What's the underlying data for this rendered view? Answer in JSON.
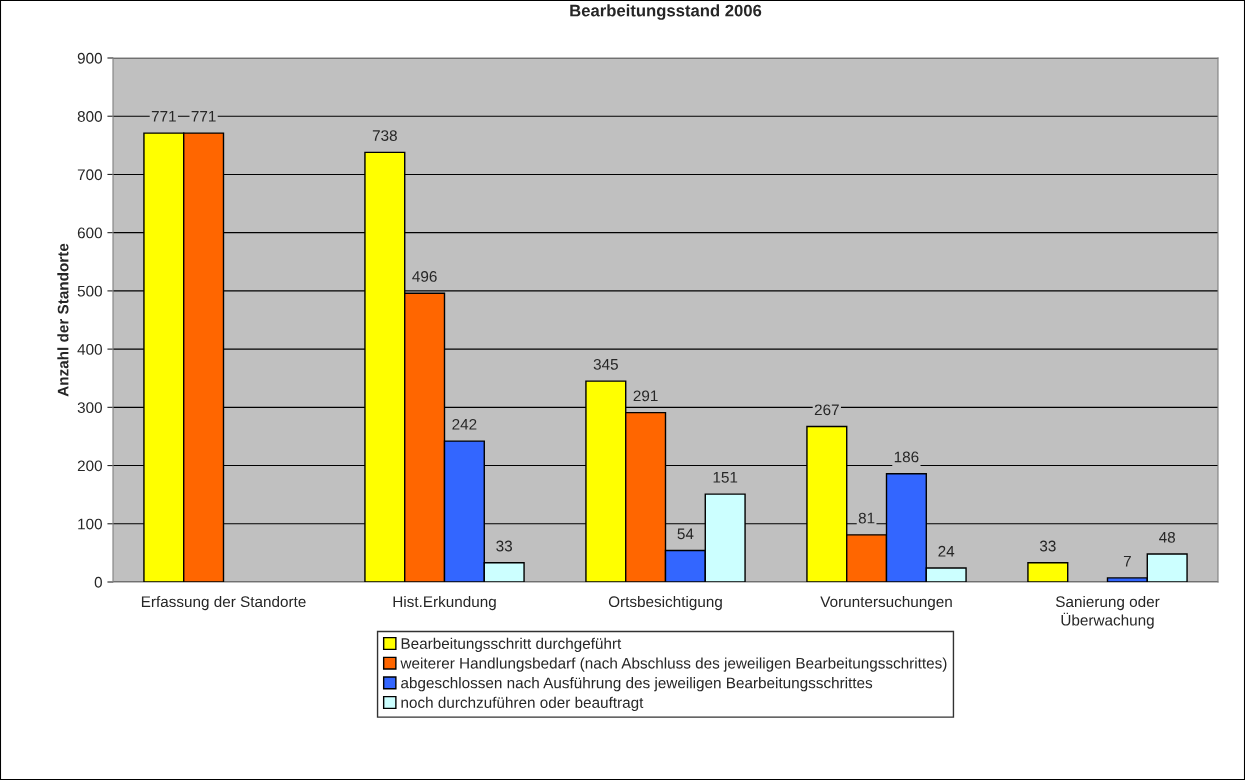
{
  "chart_data": {
    "type": "bar",
    "title": "Bearbeitungsstand 2006",
    "ylabel": "Anzahl der Standorte",
    "categories": [
      "Erfassung der Standorte",
      "Hist.Erkundung",
      "Ortsbesichtigung",
      "Voruntersuchungen",
      "Sanierung oder\nÜberwachung"
    ],
    "series": [
      {
        "name": "Bearbeitungsschritt durchgeführt",
        "color": "#ffff00",
        "values": [
          771,
          738,
          345,
          267,
          33
        ]
      },
      {
        "name": "weiterer Handlungsbedarf (nach Abschluss des jeweiligen Bearbeitungsschrittes)",
        "color": "#ff6600",
        "values": [
          771,
          496,
          291,
          81,
          null
        ]
      },
      {
        "name": "abgeschlossen nach Ausführung des jeweiligen Bearbeitungsschrittes",
        "color": "#3366ff",
        "values": [
          null,
          242,
          54,
          186,
          7
        ]
      },
      {
        "name": "noch durchzuführen oder beauftragt",
        "color": "#ccffff",
        "values": [
          null,
          33,
          151,
          24,
          48
        ]
      }
    ],
    "ylim": [
      0,
      900
    ],
    "yticks": [
      0,
      100,
      200,
      300,
      400,
      500,
      600,
      700,
      800,
      900
    ],
    "grid": "y",
    "legend": "bottom",
    "data_labels": true
  }
}
